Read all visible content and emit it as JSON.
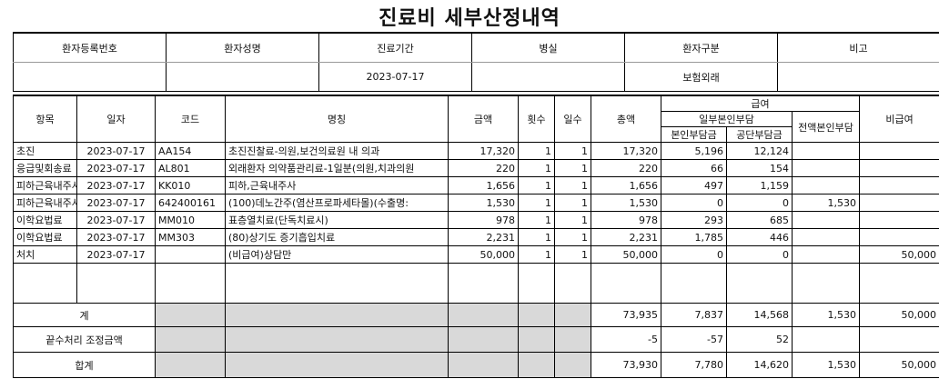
{
  "title": "진료비 세부산정내역",
  "info": {
    "headers": [
      "환자등록번호",
      "환자성명",
      "진료기간",
      "병실",
      "환자구분",
      "비고"
    ],
    "values": [
      "",
      "",
      "2023-07-17",
      "",
      "보험외래",
      ""
    ]
  },
  "detail": {
    "headers": {
      "item": "항목",
      "date": "일자",
      "code": "코드",
      "name": "명칭",
      "amount": "금액",
      "count": "횟수",
      "days": "일수",
      "total": "총액",
      "covered": "급여",
      "partial": "일부본인부담",
      "self": "본인부담금",
      "insurer": "공단부담금",
      "full_self": "전액본인부담",
      "non_covered": "비급여"
    },
    "rows": [
      {
        "item": "초진",
        "date": "2023-07-17",
        "code": "AA154",
        "name": "초진진찰료-의원,보건의료원 내 의과",
        "amount": "17,320",
        "count": "1",
        "days": "1",
        "total": "17,320",
        "self": "5,196",
        "insurer": "12,124",
        "full_self": "",
        "non_covered": ""
      },
      {
        "item": "응급및회송료",
        "date": "2023-07-17",
        "code": "AL801",
        "name": "외래환자 의약품관리료-1일분(의원,치과의원",
        "amount": "220",
        "count": "1",
        "days": "1",
        "total": "220",
        "self": "66",
        "insurer": "154",
        "full_self": "",
        "non_covered": ""
      },
      {
        "item": "피하근육내주사",
        "date": "2023-07-17",
        "code": "KK010",
        "name": "피하,근육내주사",
        "amount": "1,656",
        "count": "1",
        "days": "1",
        "total": "1,656",
        "self": "497",
        "insurer": "1,159",
        "full_self": "",
        "non_covered": ""
      },
      {
        "item": "피하근육내주사",
        "date": "2023-07-17",
        "code": "642400161",
        "name": "(100)데노간주(염산프로파세타몰)(수출명:",
        "amount": "1,530",
        "count": "1",
        "days": "1",
        "total": "1,530",
        "self": "0",
        "insurer": "0",
        "full_self": "1,530",
        "non_covered": ""
      },
      {
        "item": "이학요법료",
        "date": "2023-07-17",
        "code": "MM010",
        "name": "표층열치료(단독치료시)",
        "amount": "978",
        "count": "1",
        "days": "1",
        "total": "978",
        "self": "293",
        "insurer": "685",
        "full_self": "",
        "non_covered": ""
      },
      {
        "item": "이학요법료",
        "date": "2023-07-17",
        "code": "MM303",
        "name": "(80)상기도 증기흡입치료",
        "amount": "2,231",
        "count": "1",
        "days": "1",
        "total": "2,231",
        "self": "1,785",
        "insurer": "446",
        "full_self": "",
        "non_covered": ""
      },
      {
        "item": "처치",
        "date": "2023-07-17",
        "code": "",
        "name": "(비급여)상담만",
        "amount": "50,000",
        "count": "1",
        "days": "1",
        "total": "50,000",
        "self": "0",
        "insurer": "0",
        "full_self": "",
        "non_covered": "50,000"
      }
    ],
    "subtotal": {
      "label": "계",
      "total": "73,935",
      "self": "7,837",
      "insurer": "14,568",
      "full_self": "1,530",
      "non_covered": "50,000"
    },
    "rounding": {
      "label": "끝수처리 조정금액",
      "total": "-5",
      "self": "-57",
      "insurer": "52",
      "full_self": "",
      "non_covered": ""
    },
    "grand": {
      "label": "합계",
      "total": "73,930",
      "self": "7,780",
      "insurer": "14,620",
      "full_self": "1,530",
      "non_covered": "50,000"
    }
  }
}
